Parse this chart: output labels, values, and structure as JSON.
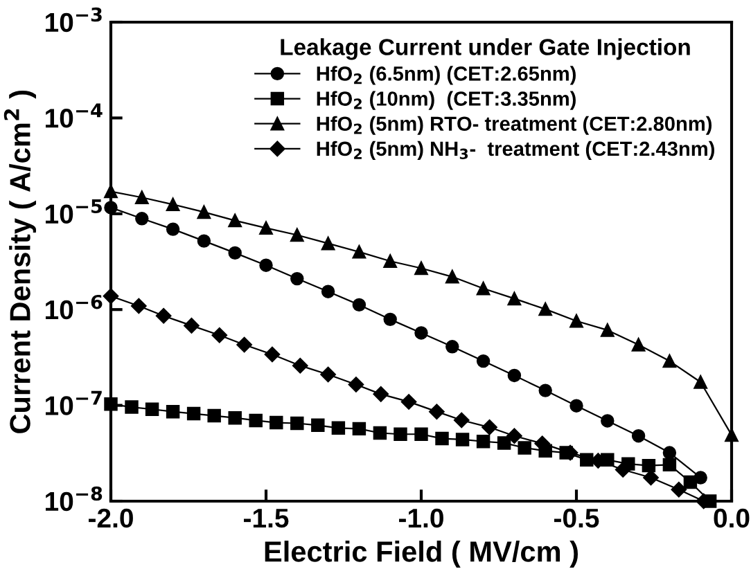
{
  "chart_data": {
    "type": "line",
    "xlabel": "Electric Field ( MV/cm )",
    "ylabel": "Current Density ( A/cm$^{2}$ )",
    "legend_title": "Leakage Current under Gate Injection",
    "legend": "top right",
    "grid": false,
    "log": "y",
    "xlim": [
      -2.0,
      0.0
    ],
    "xticks": [
      {
        "value": -2.0,
        "label": "-2.0"
      },
      {
        "value": -1.5,
        "label": "-1.5"
      },
      {
        "value": -1.0,
        "label": "-1.0"
      },
      {
        "value": -0.5,
        "label": "-0.5"
      },
      {
        "value": 0.0,
        "label": "0.0"
      }
    ],
    "ylim": [
      1e-08,
      0.001
    ],
    "yticks": [
      {
        "value": 1e-08,
        "label": "10$^{−8}$"
      },
      {
        "value": 1e-07,
        "label": "10$^{−7}$"
      },
      {
        "value": 1e-06,
        "label": "10$^{−6}$"
      },
      {
        "value": 1e-05,
        "label": "10$^{−5}$"
      },
      {
        "value": 0.0001,
        "label": "10$^{−4}$"
      },
      {
        "value": 0.001,
        "label": "10$^{−3}$"
      }
    ],
    "series": [
      {
        "name": "HfO$_{2}$ (6.5nm) (CET:2.65nm)",
        "color": "#000000",
        "marker": "circle",
        "x": [
          -2.0,
          -1.9,
          -1.8,
          -1.7,
          -1.6,
          -1.5,
          -1.4,
          -1.3,
          -1.2,
          -1.1,
          -1.0,
          -0.9,
          -0.8,
          -0.7,
          -0.6,
          -0.5,
          -0.4,
          -0.3,
          -0.2,
          -0.1
        ],
        "values": [
          1.16e-05,
          8.9e-06,
          6.9e-06,
          5.2e-06,
          3.9e-06,
          2.9e-06,
          2.1e-06,
          1.54e-06,
          1.12e-06,
          7.9e-07,
          5.7e-07,
          4.1e-07,
          2.9e-07,
          2.05e-07,
          1.43e-07,
          9.9e-08,
          6.9e-08,
          4.8e-08,
          3.2e-08,
          1.76e-08
        ]
      },
      {
        "name": "HfO$_{2}$ (10nm)  (CET:3.35nm)",
        "color": "#000000",
        "marker": "square",
        "x": [
          -2.0,
          -1.933,
          -1.867,
          -1.8,
          -1.733,
          -1.667,
          -1.6,
          -1.533,
          -1.467,
          -1.4,
          -1.333,
          -1.267,
          -1.2,
          -1.133,
          -1.067,
          -1.0,
          -0.933,
          -0.867,
          -0.8,
          -0.733,
          -0.667,
          -0.6,
          -0.533,
          -0.467,
          -0.4,
          -0.333,
          -0.267,
          -0.2,
          -0.133,
          -0.07
        ],
        "values": [
          1.03e-07,
          9.6e-08,
          9.1e-08,
          8.6e-08,
          8.2e-08,
          7.8e-08,
          7.4e-08,
          6.95e-08,
          6.6e-08,
          6.5e-08,
          6.2e-08,
          5.8e-08,
          5.7e-08,
          5.15e-08,
          5e-08,
          5e-08,
          4.5e-08,
          4.4e-08,
          4.2e-08,
          4.05e-08,
          3.6e-08,
          3.35e-08,
          3.2e-08,
          2.7e-08,
          2.7e-08,
          2.45e-08,
          2.35e-08,
          2.4e-08,
          1.58e-08,
          1e-08
        ]
      },
      {
        "name": "HfO$_{2}$ (5nm) RTO- treatment (CET:2.80nm)",
        "color": "#000000",
        "marker": "triangle",
        "x": [
          -2.0,
          -1.9,
          -1.8,
          -1.7,
          -1.6,
          -1.5,
          -1.4,
          -1.3,
          -1.2,
          -1.1,
          -1.0,
          -0.9,
          -0.8,
          -0.7,
          -0.6,
          -0.5,
          -0.4,
          -0.3,
          -0.2,
          -0.1,
          0.0
        ],
        "values": [
          1.71e-05,
          1.48e-05,
          1.25e-05,
          1.04e-05,
          8.5e-06,
          7.1e-06,
          6e-06,
          4.9e-06,
          4e-06,
          3.2e-06,
          2.7e-06,
          2.2e-06,
          1.66e-06,
          1.3e-06,
          1.01e-06,
          7.6e-07,
          6.1e-07,
          4.3e-07,
          2.9e-07,
          1.75e-07,
          4.9e-08
        ]
      },
      {
        "name": "HfO$_{2}$ (5nm) NH$_{3}$-  treatment (CET:2.43nm)",
        "color": "#000000",
        "marker": "diamond",
        "x": [
          -2.0,
          -1.91,
          -1.83,
          -1.74,
          -1.65,
          -1.57,
          -1.48,
          -1.39,
          -1.3,
          -1.21,
          -1.13,
          -1.04,
          -0.95,
          -0.87,
          -0.78,
          -0.7,
          -0.61,
          -0.52,
          -0.43,
          -0.35,
          -0.26,
          -0.17,
          -0.09
        ],
        "values": [
          1.38e-06,
          1.09e-06,
          8.6e-07,
          6.8e-07,
          5.4e-07,
          4.3e-07,
          3.4e-07,
          2.6e-07,
          2.1e-07,
          1.65e-07,
          1.31e-07,
          1.09e-07,
          8.6e-08,
          7e-08,
          5.9e-08,
          4.8e-08,
          4e-08,
          3.2e-08,
          2.65e-08,
          2.13e-08,
          1.76e-08,
          1.32e-08,
          1e-08
        ]
      }
    ]
  }
}
